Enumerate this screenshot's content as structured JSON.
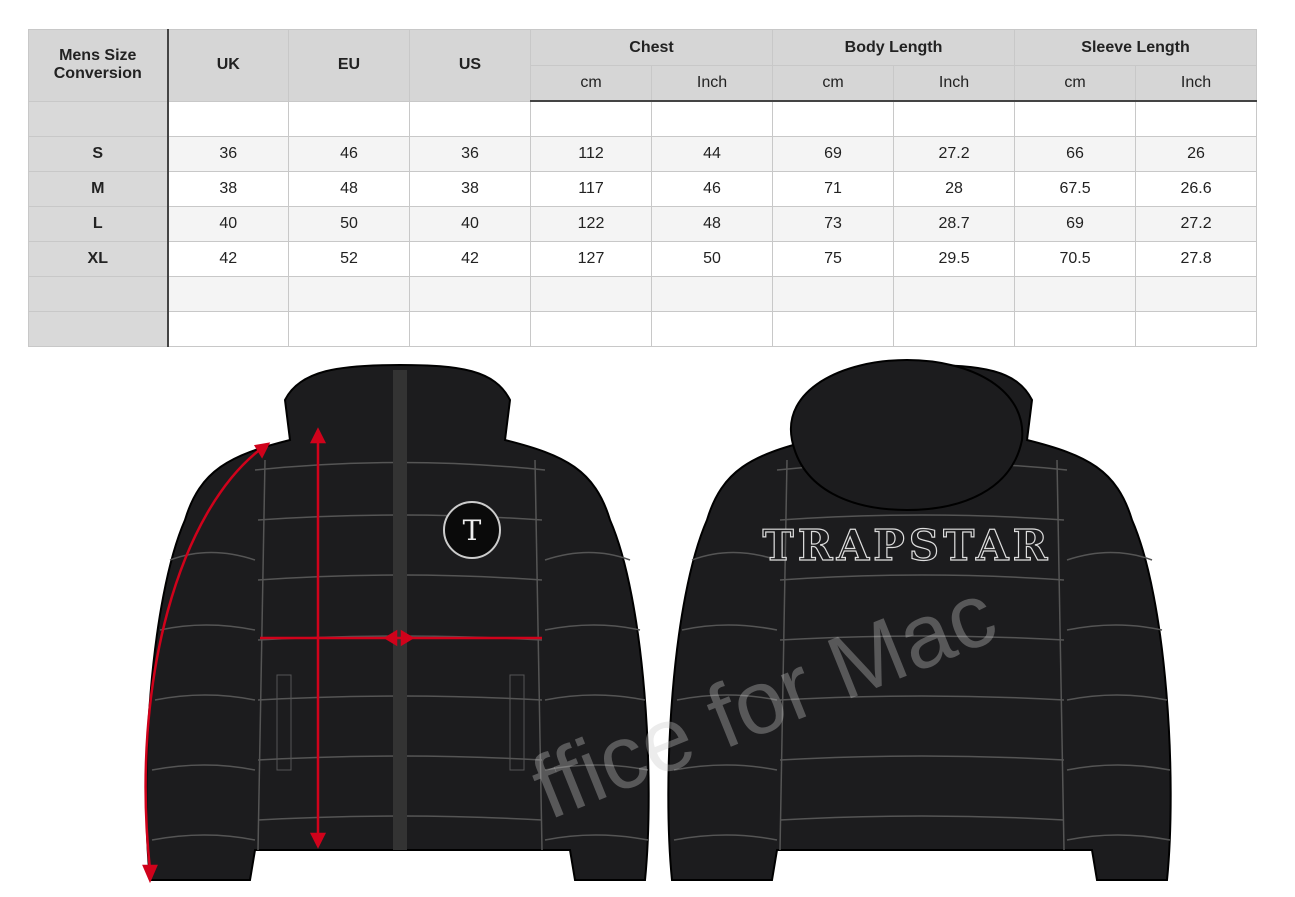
{
  "table": {
    "corner_label": "Mens Size Conversion",
    "columns": {
      "uk": "UK",
      "eu": "EU",
      "us": "US",
      "chest": "Chest",
      "body_length": "Body Length",
      "sleeve_length": "Sleeve Length"
    },
    "units": {
      "cm": "cm",
      "inch": "Inch"
    },
    "rows": [
      {
        "size": "",
        "values": [
          "",
          "",
          "",
          "",
          "",
          "",
          "",
          "",
          ""
        ]
      },
      {
        "size": "S",
        "values": [
          "36",
          "46",
          "36",
          "112",
          "44",
          "69",
          "27.2",
          "66",
          "26"
        ]
      },
      {
        "size": "M",
        "values": [
          "38",
          "48",
          "38",
          "117",
          "46",
          "71",
          "28",
          "67.5",
          "26.6"
        ]
      },
      {
        "size": "L",
        "values": [
          "40",
          "50",
          "40",
          "122",
          "48",
          "73",
          "28.7",
          "69",
          "27.2"
        ]
      },
      {
        "size": "XL",
        "values": [
          "42",
          "52",
          "42",
          "127",
          "50",
          "75",
          "29.5",
          "70.5",
          "27.8"
        ]
      },
      {
        "size": "",
        "values": [
          "",
          "",
          "",
          "",
          "",
          "",
          "",
          "",
          ""
        ]
      },
      {
        "size": "",
        "values": [
          "",
          "",
          "",
          "",
          "",
          "",
          "",
          "",
          ""
        ]
      }
    ]
  },
  "illustration": {
    "jacket_color": "#1c1c1e",
    "measure_color": "#d0021b",
    "watermark": "Office for Mac"
  }
}
